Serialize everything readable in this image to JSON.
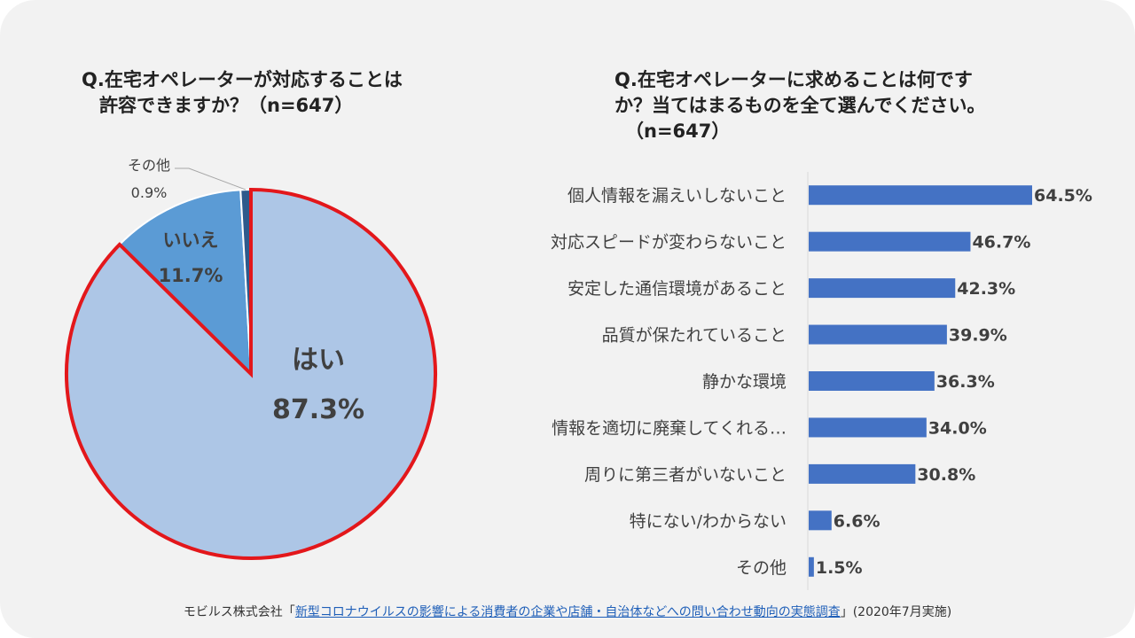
{
  "pie_title": {
    "line1": "Q.在宅オペレーターが対応することは",
    "line2": "許容できますか？（n=647）"
  },
  "bar_title": {
    "line1": "Q.在宅オペレーターに求めることは何です",
    "line2": "か？当てはまるものを全て選んでください。",
    "line3": "（n=647）"
  },
  "footer": {
    "prefix": "モビルス株式会社「",
    "link": "新型コロナウイルスの影響による消費者の企業や店舗・自治体などへの問い合わせ動向の実態調査",
    "suffix": "」(2020年7月実施)"
  },
  "colors": {
    "pie_yes": "#adc6e6",
    "pie_no": "#5b9bd5",
    "pie_other": "#2e5a8c",
    "highlight": "#e3171b",
    "bar": "#4472c4"
  },
  "chart_data": [
    {
      "type": "pie",
      "title": "Q.在宅オペレーターが対応することは許容できますか？（n=647）",
      "categories": [
        "はい",
        "いいえ",
        "その他"
      ],
      "values": [
        87.3,
        11.7,
        0.9
      ],
      "labels": [
        "87.3%",
        "11.7%",
        "0.9%"
      ],
      "highlighted": "はい"
    },
    {
      "type": "bar",
      "orientation": "horizontal",
      "title": "Q.在宅オペレーターに求めることは何ですか？当てはまるものを全て選んでください。（n=647）",
      "categories": [
        "個人情報を漏えいしないこと",
        "対応スピードが変わらないこと",
        "安定した通信環境があること",
        "品質が保たれていること",
        "静かな環境",
        "情報を適切に廃棄してくれる…",
        "周りに第三者がいないこと",
        "特にない/わからない",
        "その他"
      ],
      "values": [
        64.5,
        46.7,
        42.3,
        39.9,
        36.3,
        34.0,
        30.8,
        6.6,
        1.5
      ],
      "labels": [
        "64.5%",
        "46.7%",
        "42.3%",
        "39.9%",
        "36.3%",
        "34.0%",
        "30.8%",
        "6.6%",
        "1.5%"
      ],
      "unit": "%",
      "xlim": [
        0,
        70
      ]
    }
  ]
}
